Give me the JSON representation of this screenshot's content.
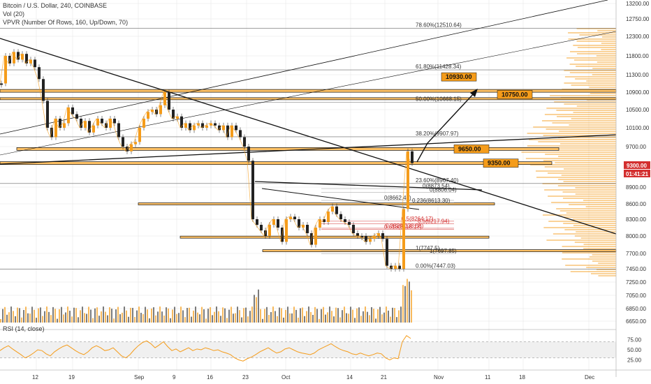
{
  "legend": {
    "title": "Bitcoin / U.S. Dollar, 240, COINBASE",
    "vol": "Vol (20)",
    "vpvr": "VPVR (Number Of Rows, 160, Up/Down, 70)",
    "rsi": "RSI (14, close)"
  },
  "colors": {
    "orange": "#f59c1a",
    "dark": "#111111",
    "red": "#d32f2f",
    "grid": "#e6e6e6"
  },
  "chart_data": {
    "type": "line",
    "y_axis": {
      "ticks": [
        13200,
        12750,
        12300,
        11800,
        11300,
        10900,
        10500,
        10100,
        9700,
        9300,
        8900,
        8600,
        8300,
        8000,
        7700,
        7450,
        7250,
        7050,
        6850,
        6650
      ],
      "ylim": [
        6600,
        13300
      ]
    },
    "x_axis": {
      "ticks": [
        "12",
        "19",
        "Sep",
        "9",
        "16",
        "23",
        "Oct",
        "14",
        "21",
        "Nov",
        "11",
        "18",
        "Dec"
      ]
    },
    "price": {
      "x": [
        0,
        6,
        12,
        18,
        24,
        30,
        36,
        42,
        48,
        54,
        60,
        66,
        72,
        78,
        84,
        90,
        96,
        102,
        108,
        114,
        120,
        126,
        132,
        138,
        144,
        150,
        156,
        162,
        168,
        174,
        180,
        186,
        192,
        198,
        204,
        210,
        216,
        222,
        228,
        234,
        240,
        246,
        252,
        258,
        264,
        270,
        276,
        282,
        288,
        294,
        300,
        306,
        312,
        318,
        324,
        330,
        336,
        342,
        348,
        354,
        360,
        366,
        372,
        378,
        384,
        390,
        396,
        402,
        408,
        414,
        420,
        426,
        432,
        438,
        444,
        450,
        456,
        462,
        468,
        474,
        480,
        486,
        492,
        498,
        504,
        510,
        516,
        522,
        528,
        534,
        540,
        546,
        552,
        558,
        564,
        570,
        576,
        582,
        588
      ],
      "values": [
        11100,
        11800,
        11600,
        11900,
        11700,
        11850,
        11600,
        11700,
        11500,
        11200,
        10700,
        10100,
        9900,
        10300,
        10100,
        10200,
        10550,
        10400,
        10300,
        10100,
        10250,
        10000,
        10150,
        10300,
        10200,
        10100,
        10300,
        10200,
        9900,
        9700,
        9600,
        9750,
        9800,
        10100,
        10300,
        10450,
        10500,
        10400,
        10600,
        10900,
        10500,
        10300,
        10350,
        10100,
        10200,
        10050,
        10150,
        10200,
        10100,
        10150,
        10200,
        10150,
        10050,
        10150,
        9900,
        10150,
        10050,
        9900,
        9700,
        9400,
        8300,
        8200,
        8100,
        8000,
        8200,
        8300,
        8150,
        7900,
        8300,
        8350,
        8300,
        8150,
        8200,
        8050,
        7850,
        8150,
        8300,
        8250,
        8450,
        8550,
        8400,
        8300,
        8250,
        8200,
        8050,
        8000,
        8000,
        7900,
        7950,
        8000,
        8050,
        7950,
        7500,
        7450,
        7500,
        7450,
        8500,
        9600,
        9350
      ]
    },
    "fib_levels": [
      {
        "label": "78.60%(12510.64)",
        "value": 12510.64
      },
      {
        "label": "61.80%(11428.34)",
        "value": 11428.34
      },
      {
        "label": "50.00%(10668.15)",
        "value": 10668.15
      },
      {
        "label": "38.20%(9907.97)",
        "value": 9907.97
      },
      {
        "label": "23.60%(8967.40)",
        "value": 8967.4
      },
      {
        "label": "0.00%(7447.03)",
        "value": 7447.03
      }
    ],
    "fib_labels_inner": [
      {
        "label": "0(8873.54)",
        "value": 8873.54,
        "red": false
      },
      {
        "label": "0(8806.04)",
        "value": 8806.04,
        "red": false
      },
      {
        "label": "0(8662.40)",
        "value": 8662.4,
        "red": false
      },
      {
        "label": "0.236(8613.30)",
        "value": 8613.3,
        "red": false
      },
      {
        "label": "0.5(8217.94)",
        "value": 8217.94,
        "red": true
      },
      {
        "label": "0.382(8138.58)",
        "value": 8138.58,
        "red": true
      },
      {
        "label": "0.5(8264.17)",
        "value": 8264.17,
        "red": true
      },
      {
        "label": "0.618(8116.17)",
        "value": 8116.17,
        "red": true
      },
      {
        "label": "1(7747.5)",
        "value": 7747.5,
        "red": false
      },
      {
        "label": "1(7697.85)",
        "value": 7697.85,
        "red": false
      }
    ],
    "callouts": [
      {
        "label": "10930.00",
        "value": 10930
      },
      {
        "label": "10750.00",
        "value": 10750
      },
      {
        "label": "9650.00",
        "value": 9650
      },
      {
        "label": "9350.00",
        "value": 9350
      }
    ],
    "current_price": {
      "label": "9300.00",
      "countdown": "01:41:21",
      "value": 9300
    },
    "rsi": {
      "ticks": [
        "75.00",
        "50.00",
        "25.00"
      ],
      "values": [
        48,
        55,
        60,
        52,
        45,
        38,
        30,
        35,
        42,
        50,
        48,
        40,
        35,
        45,
        52,
        58,
        62,
        55,
        48,
        42,
        38,
        45,
        55,
        60,
        55,
        48,
        50,
        55,
        45,
        35,
        30,
        38,
        50,
        60,
        68,
        72,
        65,
        55,
        62,
        70,
        58,
        48,
        52,
        45,
        50,
        55,
        48,
        52,
        50,
        55,
        52,
        48,
        50,
        45,
        42,
        38,
        30,
        25,
        22,
        28,
        32,
        38,
        45,
        50,
        55,
        48,
        42,
        45,
        52,
        55,
        50,
        45,
        42,
        40,
        38,
        42,
        50,
        55,
        60,
        65,
        58,
        52,
        48,
        45,
        40,
        38,
        42,
        38,
        35,
        38,
        42,
        40,
        30,
        25,
        30,
        28,
        70,
        85,
        78
      ]
    }
  }
}
